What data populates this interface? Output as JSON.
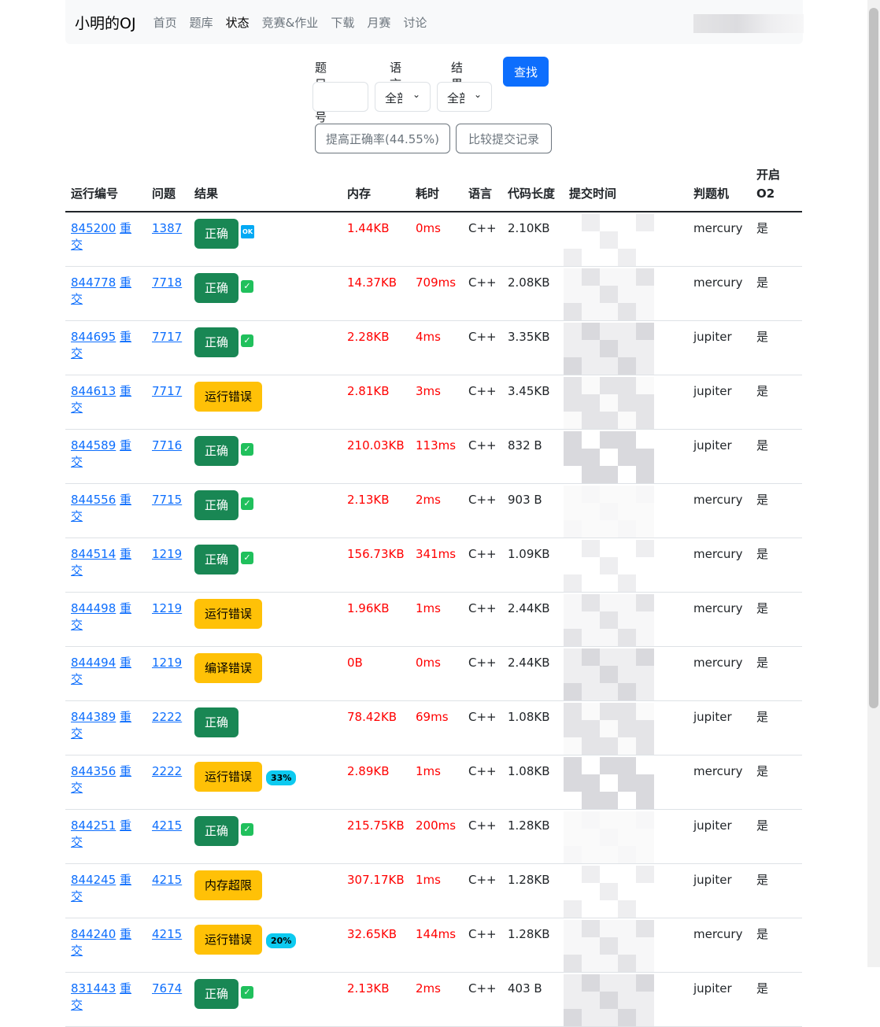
{
  "nav": {
    "brand": "小明的OJ",
    "items": [
      "首页",
      "题库",
      "状态",
      "竞赛&作业",
      "下载",
      "月赛",
      "讨论"
    ],
    "active": 2
  },
  "filters": {
    "problem_label": "题目编号",
    "problem_value": "",
    "lang_label": "语言",
    "lang_value": "全部",
    "result_label": "结果",
    "result_value": "全部",
    "find": "查找",
    "improve": "提高正确率(44.55%)",
    "compare": "比较提交记录"
  },
  "table": {
    "headers": [
      "运行编号",
      "问题",
      "结果",
      "内存",
      "耗时",
      "语言",
      "代码长度",
      "提交时间",
      "判题机",
      "开启O2"
    ],
    "rejudge": "重交",
    "rows": [
      {
        "id": "845200",
        "problem": "1387",
        "result": "正确",
        "type": "ok",
        "badge": "OK",
        "mem": "1.44KB",
        "time": "0ms",
        "lang": "C++",
        "len": "2.10KB",
        "judge": "mercury",
        "o2": "是"
      },
      {
        "id": "844778",
        "problem": "7718",
        "result": "正确",
        "type": "ok",
        "badge": "check",
        "mem": "14.37KB",
        "time": "709ms",
        "lang": "C++",
        "len": "2.08KB",
        "judge": "mercury",
        "o2": "是"
      },
      {
        "id": "844695",
        "problem": "7717",
        "result": "正确",
        "type": "ok",
        "badge": "check",
        "mem": "2.28KB",
        "time": "4ms",
        "lang": "C++",
        "len": "3.35KB",
        "judge": "jupiter",
        "o2": "是"
      },
      {
        "id": "844613",
        "problem": "7717",
        "result": "运行错误",
        "type": "warn",
        "badge": "",
        "mem": "2.81KB",
        "time": "3ms",
        "lang": "C++",
        "len": "3.45KB",
        "judge": "jupiter",
        "o2": "是"
      },
      {
        "id": "844589",
        "problem": "7716",
        "result": "正确",
        "type": "ok",
        "badge": "check",
        "mem": "210.03KB",
        "time": "113ms",
        "lang": "C++",
        "len": "832 B",
        "judge": "jupiter",
        "o2": "是"
      },
      {
        "id": "844556",
        "problem": "7715",
        "result": "正确",
        "type": "ok",
        "badge": "check",
        "mem": "2.13KB",
        "time": "2ms",
        "lang": "C++",
        "len": "903 B",
        "judge": "mercury",
        "o2": "是"
      },
      {
        "id": "844514",
        "problem": "1219",
        "result": "正确",
        "type": "ok",
        "badge": "check",
        "mem": "156.73KB",
        "time": "341ms",
        "lang": "C++",
        "len": "1.09KB",
        "judge": "mercury",
        "o2": "是"
      },
      {
        "id": "844498",
        "problem": "1219",
        "result": "运行错误",
        "type": "warn",
        "badge": "",
        "mem": "1.96KB",
        "time": "1ms",
        "lang": "C++",
        "len": "2.44KB",
        "judge": "mercury",
        "o2": "是"
      },
      {
        "id": "844494",
        "problem": "1219",
        "result": "编译错误",
        "type": "warn",
        "badge": "",
        "mem": "0B",
        "time": "0ms",
        "lang": "C++",
        "len": "2.44KB",
        "judge": "mercury",
        "o2": "是"
      },
      {
        "id": "844389",
        "problem": "2222",
        "result": "正确",
        "type": "ok",
        "badge": "",
        "mem": "78.42KB",
        "time": "69ms",
        "lang": "C++",
        "len": "1.08KB",
        "judge": "jupiter",
        "o2": "是"
      },
      {
        "id": "844356",
        "problem": "2222",
        "result": "运行错误",
        "type": "warn",
        "badge": "33%",
        "mem": "2.89KB",
        "time": "1ms",
        "lang": "C++",
        "len": "1.08KB",
        "judge": "mercury",
        "o2": "是"
      },
      {
        "id": "844251",
        "problem": "4215",
        "result": "正确",
        "type": "ok",
        "badge": "check",
        "mem": "215.75KB",
        "time": "200ms",
        "lang": "C++",
        "len": "1.28KB",
        "judge": "jupiter",
        "o2": "是"
      },
      {
        "id": "844245",
        "problem": "4215",
        "result": "内存超限",
        "type": "warn",
        "badge": "",
        "mem": "307.17KB",
        "time": "1ms",
        "lang": "C++",
        "len": "1.28KB",
        "judge": "jupiter",
        "o2": "是"
      },
      {
        "id": "844240",
        "problem": "4215",
        "result": "运行错误",
        "type": "warn",
        "badge": "20%",
        "mem": "32.65KB",
        "time": "144ms",
        "lang": "C++",
        "len": "1.28KB",
        "judge": "mercury",
        "o2": "是"
      },
      {
        "id": "831443",
        "problem": "7674",
        "result": "正确",
        "type": "ok",
        "badge": "check",
        "mem": "2.13KB",
        "time": "2ms",
        "lang": "C++",
        "len": "403 B",
        "judge": "jupiter",
        "o2": "是"
      }
    ]
  }
}
